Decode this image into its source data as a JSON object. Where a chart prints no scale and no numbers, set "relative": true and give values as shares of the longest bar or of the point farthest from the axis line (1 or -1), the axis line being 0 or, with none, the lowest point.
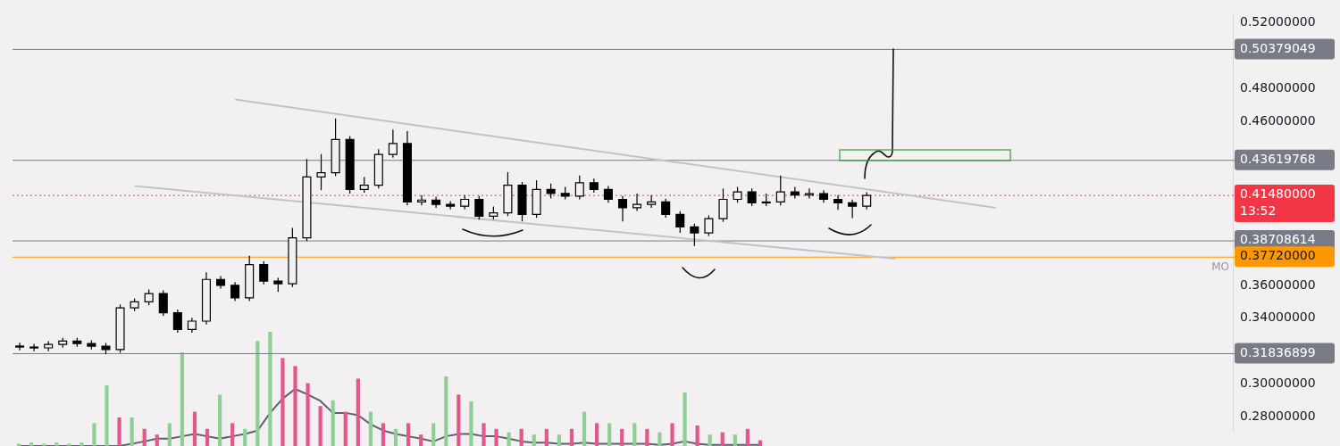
{
  "chart_data": [
    {
      "type": "candlestick",
      "tick_labels": "y",
      "grid": false,
      "legend": false,
      "categories": [
        null,
        null,
        null,
        null,
        null,
        null,
        null,
        null,
        null,
        null,
        null,
        null,
        null,
        null,
        null,
        null,
        null,
        null,
        null,
        null,
        null,
        null,
        null,
        null,
        null,
        null,
        null,
        null,
        null,
        null,
        null,
        null,
        null,
        null,
        null,
        null,
        null,
        null,
        null,
        null,
        null,
        null,
        null,
        null,
        null,
        null,
        null,
        null,
        null,
        null,
        null,
        null,
        null,
        null,
        null,
        null,
        null,
        null,
        null,
        null,
        null,
        null,
        null,
        null,
        null,
        null,
        null,
        null,
        null,
        null,
        null,
        null,
        null,
        null,
        null,
        null,
        null,
        null,
        null,
        null,
        null,
        null,
        null,
        null,
        null
      ],
      "ohlc": [
        [
          0.323,
          0.325,
          0.3204,
          0.3224
        ],
        [
          0.3224,
          0.3244,
          0.3199,
          0.3219
        ],
        [
          0.3219,
          0.326,
          0.3199,
          0.324
        ],
        [
          0.324,
          0.328,
          0.322,
          0.326
        ],
        [
          0.326,
          0.328,
          0.3225,
          0.3245
        ],
        [
          0.3245,
          0.3265,
          0.3209,
          0.3229
        ],
        [
          0.3229,
          0.3249,
          0.318,
          0.3209
        ],
        [
          0.3209,
          0.3483,
          0.3189,
          0.3463
        ],
        [
          0.3463,
          0.3519,
          0.3443,
          0.3499
        ],
        [
          0.3499,
          0.3575,
          0.3479,
          0.355
        ],
        [
          0.355,
          0.357,
          0.3413,
          0.3433
        ],
        [
          0.3433,
          0.3453,
          0.3311,
          0.3331
        ],
        [
          0.3331,
          0.3402,
          0.3311,
          0.3382
        ],
        [
          0.3382,
          0.368,
          0.3362,
          0.3636
        ],
        [
          0.3636,
          0.3656,
          0.358,
          0.36
        ],
        [
          0.36,
          0.362,
          0.3504,
          0.3524
        ],
        [
          0.3524,
          0.378,
          0.3504,
          0.3727
        ],
        [
          0.3727,
          0.3747,
          0.3606,
          0.3626
        ],
        [
          0.3626,
          0.3646,
          0.356,
          0.361
        ],
        [
          0.361,
          0.395,
          0.359,
          0.389
        ],
        [
          0.389,
          0.437,
          0.387,
          0.4261
        ],
        [
          0.4261,
          0.44,
          0.418,
          0.4286
        ],
        [
          0.4286,
          0.4617,
          0.4266,
          0.4489
        ],
        [
          0.4489,
          0.4509,
          0.416,
          0.4185
        ],
        [
          0.4185,
          0.426,
          0.4165,
          0.421
        ],
        [
          0.421,
          0.443,
          0.419,
          0.4398
        ],
        [
          0.4398,
          0.455,
          0.4378,
          0.4464
        ],
        [
          0.4464,
          0.454,
          0.4088,
          0.4108
        ],
        [
          0.4108,
          0.415,
          0.4088,
          0.412
        ],
        [
          0.412,
          0.414,
          0.4073,
          0.4093
        ],
        [
          0.4093,
          0.4113,
          0.4063,
          0.4083
        ],
        [
          0.4083,
          0.415,
          0.4063,
          0.4124
        ],
        [
          0.4124,
          0.4144,
          0.4,
          0.4022
        ],
        [
          0.4022,
          0.408,
          0.4002,
          0.4042
        ],
        [
          0.4042,
          0.429,
          0.4022,
          0.421
        ],
        [
          0.421,
          0.423,
          0.399,
          0.4032
        ],
        [
          0.4032,
          0.424,
          0.4012,
          0.4185
        ],
        [
          0.4185,
          0.422,
          0.413,
          0.416
        ],
        [
          0.416,
          0.42,
          0.4124,
          0.4144
        ],
        [
          0.4144,
          0.427,
          0.4124,
          0.4225
        ],
        [
          0.4225,
          0.425,
          0.4165,
          0.4185
        ],
        [
          0.4185,
          0.4205,
          0.4104,
          0.4124
        ],
        [
          0.4124,
          0.4144,
          0.399,
          0.4073
        ],
        [
          0.4073,
          0.416,
          0.4053,
          0.4093
        ],
        [
          0.4093,
          0.415,
          0.4073,
          0.4108
        ],
        [
          0.4108,
          0.4128,
          0.4012,
          0.4032
        ],
        [
          0.4032,
          0.4052,
          0.392,
          0.3956
        ],
        [
          0.3956,
          0.3976,
          0.384,
          0.392
        ],
        [
          0.392,
          0.4027,
          0.39,
          0.4007
        ],
        [
          0.4007,
          0.419,
          0.3987,
          0.4124
        ],
        [
          0.4124,
          0.42,
          0.4104,
          0.417
        ],
        [
          0.417,
          0.419,
          0.4083,
          0.4103
        ],
        [
          0.4103,
          0.416,
          0.4083,
          0.4108
        ],
        [
          0.4108,
          0.427,
          0.4088,
          0.417
        ],
        [
          0.417,
          0.42,
          0.413,
          0.415
        ],
        [
          0.415,
          0.419,
          0.413,
          0.4159
        ],
        [
          0.4159,
          0.418,
          0.4104,
          0.4124
        ],
        [
          0.4124,
          0.415,
          0.406,
          0.4103
        ],
        [
          0.4103,
          0.4123,
          0.401,
          0.4083
        ],
        [
          0.4083,
          0.4168,
          0.4063,
          0.4148
        ],
        null,
        null,
        null,
        null,
        null,
        null,
        null,
        null,
        null,
        null,
        null,
        null,
        null,
        null,
        null,
        null,
        null,
        null,
        null,
        null,
        null,
        null,
        null,
        null,
        null
      ],
      "series": [
        {
          "type": "line",
          "color": "#c3c2cc",
          "values": [
            null,
            null,
            null,
            null,
            null,
            null,
            null,
            null,
            null,
            null,
            null,
            null,
            null,
            null,
            null,
            0.4733,
            null,
            null,
            null,
            null,
            null,
            null,
            null,
            null,
            null,
            null,
            null,
            null,
            null,
            null,
            null,
            null,
            null,
            null,
            null,
            null,
            null,
            null,
            null,
            null,
            null,
            null,
            null,
            null,
            null,
            null,
            null,
            null,
            null,
            null,
            null,
            null,
            null,
            null,
            null,
            null,
            null,
            null,
            null,
            null,
            null,
            null,
            null,
            null,
            null,
            null,
            null,
            null,
            0.4073,
            null,
            null,
            null,
            null,
            null,
            null,
            null,
            null,
            null,
            null,
            null,
            null,
            null,
            null,
            null,
            null
          ]
        },
        {
          "type": "line",
          "color": "#c3c2cc",
          "values": [
            null,
            null,
            null,
            null,
            null,
            null,
            null,
            null,
            0.4206,
            null,
            null,
            null,
            null,
            null,
            null,
            null,
            null,
            null,
            null,
            null,
            null,
            null,
            null,
            null,
            null,
            null,
            null,
            null,
            null,
            null,
            null,
            null,
            null,
            null,
            null,
            null,
            null,
            null,
            null,
            null,
            null,
            null,
            null,
            null,
            null,
            null,
            null,
            null,
            null,
            null,
            null,
            null,
            null,
            null,
            null,
            null,
            null,
            null,
            null,
            null,
            null,
            0.3763,
            null,
            null,
            null,
            null,
            null,
            null,
            null,
            null,
            null,
            null,
            null,
            null,
            null,
            null,
            null,
            null,
            null,
            null,
            null,
            null,
            null,
            null,
            null
          ]
        }
      ],
      "ylim": [
        0.271,
        0.525
      ],
      "yticks": [
        {
          "value": 0.28,
          "label": "0.28000000"
        },
        {
          "value": 0.3,
          "label": "0.30000000"
        },
        {
          "value": 0.34,
          "label": "0.34000000"
        },
        {
          "value": 0.36,
          "label": "0.36000000"
        },
        {
          "value": 0.46,
          "label": "0.46000000"
        },
        {
          "value": 0.48,
          "label": "0.48000000"
        },
        {
          "value": 0.52,
          "label": "0.52000000"
        }
      ],
      "ref_lines": [
        {
          "axis": "y",
          "value": 0.50379049,
          "label": "0.50379049",
          "color": "#787b86"
        },
        {
          "axis": "y",
          "value": 0.43619768,
          "label": "0.43619768",
          "color": "#787b86"
        },
        {
          "axis": "y",
          "value": 0.4148,
          "label": "0.41480000 13:52",
          "color": "#f23645",
          "line_style": "dotted"
        },
        {
          "axis": "y",
          "value": 0.38708614,
          "label": "0.38708614",
          "color": "#787b86"
        },
        {
          "axis": "y",
          "value": 0.3772,
          "label": "0.37720000",
          "color": "#ff9800"
        },
        {
          "axis": "y",
          "value": 0.31836899,
          "label": "0.31836899",
          "color": "#787b86"
        }
      ],
      "annotations": [
        {
          "text": "MO",
          "y": 0.3772
        }
      ]
    },
    {
      "type": "bar",
      "relative": true,
      "tick_labels": false,
      "grid": false,
      "legend": false,
      "categories": [
        null,
        null,
        null,
        null,
        null,
        null,
        null,
        null,
        null,
        null,
        null,
        null,
        null,
        null,
        null,
        null,
        null,
        null,
        null,
        null,
        null,
        null,
        null,
        null,
        null,
        null,
        null,
        null,
        null,
        null,
        null,
        null,
        null,
        null,
        null,
        null,
        null,
        null,
        null,
        null,
        null,
        null,
        null,
        null,
        null,
        null,
        null,
        null,
        null,
        null,
        null,
        null,
        null,
        null,
        null,
        null,
        null,
        null,
        null,
        null
      ],
      "values": [
        0.02,
        0.03,
        0.02,
        0.03,
        0.02,
        0.03,
        0.2,
        0.53,
        0.25,
        0.25,
        0.15,
        0.1,
        0.2,
        0.82,
        0.3,
        0.15,
        0.45,
        0.2,
        0.15,
        0.92,
        1,
        0.77,
        0.7,
        0.55,
        0.35,
        0.4,
        0.3,
        0.59,
        0.3,
        0.2,
        0.15,
        0.2,
        0.1,
        0.2,
        0.61,
        0.45,
        0.39,
        0.2,
        0.15,
        0.12,
        0.15,
        0.1,
        0.15,
        0.1,
        0.15,
        0.3,
        0.2,
        0.2,
        0.15,
        0.2,
        0.15,
        0.12,
        0.2,
        0.47,
        0.18,
        0.1,
        0.12,
        0.1,
        0.15,
        0.05
      ],
      "colors": [
        "#8fcf96",
        "#8fcf96",
        "#8fcf96",
        "#8fcf96",
        "#8fcf96",
        "#8fcf96",
        "#8fcf96",
        "#8fcf96",
        "#e0588c",
        "#8fcf96",
        "#e0588c",
        "#e0588c",
        "#8fcf96",
        "#8fcf96",
        "#e0588c",
        "#e0588c",
        "#8fcf96",
        "#e0588c",
        "#8fcf96",
        "#8fcf96",
        "#8fcf96",
        "#e0588c",
        "#e0588c",
        "#e0588c",
        "#e0588c",
        "#8fcf96",
        "#e0588c",
        "#e0588c",
        "#8fcf96",
        "#e0588c",
        "#8fcf96",
        "#e0588c",
        "#e0588c",
        "#8fcf96",
        "#8fcf96",
        "#e0588c",
        "#8fcf96",
        "#e0588c",
        "#e0588c",
        "#8fcf96",
        "#e0588c",
        "#8fcf96",
        "#e0588c",
        "#8fcf96",
        "#e0588c",
        "#8fcf96",
        "#e0588c",
        "#8fcf96",
        "#e0588c",
        "#8fcf96",
        "#e0588c",
        "#8fcf96",
        "#e0588c",
        "#8fcf96",
        "#e0588c",
        "#8fcf96",
        "#e0588c",
        "#8fcf96",
        "#e0588c",
        "#e0588c"
      ]
    },
    {
      "type": "line",
      "relative": true,
      "tick_labels": false,
      "grid": false,
      "legend": false,
      "categories": [
        null,
        null,
        null,
        null,
        null,
        null,
        null,
        null,
        null,
        null,
        null,
        null,
        null,
        null,
        null,
        null,
        null,
        null,
        null,
        null,
        null,
        null,
        null,
        null,
        null,
        null,
        null,
        null,
        null,
        null,
        null,
        null,
        null,
        null,
        null,
        null,
        null,
        null,
        null,
        null,
        null,
        null,
        null,
        null,
        null,
        null,
        null,
        null,
        null,
        null,
        null,
        null,
        null,
        null,
        null,
        null,
        null,
        null,
        null,
        null
      ],
      "color": "#5d606b",
      "values": [
        0,
        0,
        0,
        0,
        0,
        0,
        0,
        0,
        0,
        0.04,
        0.08,
        0.13,
        0.13,
        0.17,
        0.21,
        0.17,
        0.13,
        0.17,
        0.21,
        0.27,
        0.58,
        0.83,
        1,
        0.9,
        0.79,
        0.58,
        0.58,
        0.54,
        0.38,
        0.27,
        0.21,
        0.17,
        0.13,
        0.08,
        0.17,
        0.21,
        0.21,
        0.17,
        0.17,
        0.13,
        0.08,
        0.06,
        0.06,
        0.04,
        0.04,
        0.06,
        0.04,
        0.04,
        0.04,
        0.04,
        0.04,
        0.02,
        0.04,
        0.08,
        0.04,
        0.02,
        0.02,
        0.02,
        0.02,
        0.02
      ]
    }
  ]
}
